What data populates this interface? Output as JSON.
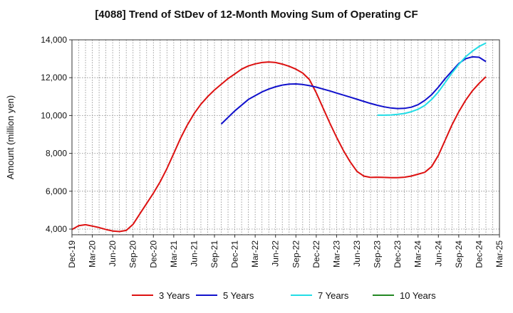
{
  "chart_data": {
    "type": "line",
    "title": "[4088]  Trend of StDev of 12-Month Moving Sum of Operating CF",
    "xlabel": "",
    "ylabel": "Amount (million yen)",
    "ylim": [
      3700,
      14000
    ],
    "yticks": [
      4000,
      6000,
      8000,
      10000,
      12000,
      14000
    ],
    "ytick_labels": [
      "4,000",
      "6,000",
      "8,000",
      "10,000",
      "12,000",
      "14,000"
    ],
    "x_start": "2019-12",
    "x_end": "2025-03",
    "xtick_labels": [
      "Dec-19",
      "Mar-20",
      "Jun-20",
      "Sep-20",
      "Dec-20",
      "Mar-21",
      "Jun-21",
      "Sep-21",
      "Dec-21",
      "Mar-22",
      "Jun-22",
      "Sep-22",
      "Dec-22",
      "Mar-23",
      "Jun-23",
      "Sep-23",
      "Dec-23",
      "Mar-24",
      "Jun-24",
      "Sep-24",
      "Dec-24",
      "Mar-25"
    ],
    "grid": true,
    "legend_position": "bottom",
    "series": [
      {
        "name": "3 Years",
        "color": "#dd1111",
        "points": [
          [
            "2019-12",
            3980
          ],
          [
            "2020-01",
            4180
          ],
          [
            "2020-02",
            4230
          ],
          [
            "2020-03",
            4160
          ],
          [
            "2020-04",
            4080
          ],
          [
            "2020-05",
            3980
          ],
          [
            "2020-06",
            3900
          ],
          [
            "2020-07",
            3870
          ],
          [
            "2020-08",
            3930
          ],
          [
            "2020-09",
            4250
          ],
          [
            "2020-10",
            4800
          ],
          [
            "2020-11",
            5350
          ],
          [
            "2020-12",
            5900
          ],
          [
            "2021-01",
            6500
          ],
          [
            "2021-02",
            7200
          ],
          [
            "2021-03",
            8000
          ],
          [
            "2021-04",
            8800
          ],
          [
            "2021-05",
            9500
          ],
          [
            "2021-06",
            10100
          ],
          [
            "2021-07",
            10600
          ],
          [
            "2021-08",
            11000
          ],
          [
            "2021-09",
            11350
          ],
          [
            "2021-10",
            11650
          ],
          [
            "2021-11",
            11950
          ],
          [
            "2021-12",
            12200
          ],
          [
            "2022-01",
            12450
          ],
          [
            "2022-02",
            12620
          ],
          [
            "2022-03",
            12730
          ],
          [
            "2022-04",
            12800
          ],
          [
            "2022-05",
            12830
          ],
          [
            "2022-06",
            12800
          ],
          [
            "2022-07",
            12720
          ],
          [
            "2022-08",
            12600
          ],
          [
            "2022-09",
            12450
          ],
          [
            "2022-10",
            12250
          ],
          [
            "2022-11",
            11900
          ],
          [
            "2022-12",
            11200
          ],
          [
            "2023-01",
            10400
          ],
          [
            "2023-02",
            9600
          ],
          [
            "2023-03",
            8850
          ],
          [
            "2023-04",
            8150
          ],
          [
            "2023-05",
            7550
          ],
          [
            "2023-06",
            7050
          ],
          [
            "2023-07",
            6800
          ],
          [
            "2023-08",
            6730
          ],
          [
            "2023-09",
            6740
          ],
          [
            "2023-10",
            6730
          ],
          [
            "2023-11",
            6720
          ],
          [
            "2023-12",
            6720
          ],
          [
            "2024-01",
            6740
          ],
          [
            "2024-02",
            6800
          ],
          [
            "2024-03",
            6900
          ],
          [
            "2024-04",
            7000
          ],
          [
            "2024-05",
            7300
          ],
          [
            "2024-06",
            7900
          ],
          [
            "2024-07",
            8700
          ],
          [
            "2024-08",
            9500
          ],
          [
            "2024-09",
            10200
          ],
          [
            "2024-10",
            10800
          ],
          [
            "2024-11",
            11300
          ],
          [
            "2024-12",
            11700
          ],
          [
            "2025-01",
            12050
          ]
        ]
      },
      {
        "name": "5 Years",
        "color": "#1111cc",
        "points": [
          [
            "2021-10",
            9550
          ],
          [
            "2021-11",
            9900
          ],
          [
            "2021-12",
            10250
          ],
          [
            "2022-01",
            10550
          ],
          [
            "2022-02",
            10850
          ],
          [
            "2022-03",
            11050
          ],
          [
            "2022-04",
            11250
          ],
          [
            "2022-05",
            11400
          ],
          [
            "2022-06",
            11520
          ],
          [
            "2022-07",
            11610
          ],
          [
            "2022-08",
            11660
          ],
          [
            "2022-09",
            11670
          ],
          [
            "2022-10",
            11640
          ],
          [
            "2022-11",
            11580
          ],
          [
            "2022-12",
            11500
          ],
          [
            "2023-01",
            11400
          ],
          [
            "2023-02",
            11300
          ],
          [
            "2023-03",
            11190
          ],
          [
            "2023-04",
            11080
          ],
          [
            "2023-05",
            10970
          ],
          [
            "2023-06",
            10860
          ],
          [
            "2023-07",
            10750
          ],
          [
            "2023-08",
            10640
          ],
          [
            "2023-09",
            10540
          ],
          [
            "2023-10",
            10460
          ],
          [
            "2023-11",
            10400
          ],
          [
            "2023-12",
            10370
          ],
          [
            "2024-01",
            10380
          ],
          [
            "2024-02",
            10440
          ],
          [
            "2024-03",
            10570
          ],
          [
            "2024-04",
            10800
          ],
          [
            "2024-05",
            11100
          ],
          [
            "2024-06",
            11500
          ],
          [
            "2024-07",
            11950
          ],
          [
            "2024-08",
            12350
          ],
          [
            "2024-09",
            12750
          ],
          [
            "2024-10",
            13000
          ],
          [
            "2024-11",
            13100
          ],
          [
            "2024-12",
            13080
          ],
          [
            "2025-01",
            12850
          ]
        ]
      },
      {
        "name": "7 Years",
        "color": "#22dde6",
        "points": [
          [
            "2023-09",
            10020
          ],
          [
            "2023-10",
            10020
          ],
          [
            "2023-11",
            10030
          ],
          [
            "2023-12",
            10060
          ],
          [
            "2024-01",
            10110
          ],
          [
            "2024-02",
            10200
          ],
          [
            "2024-03",
            10330
          ],
          [
            "2024-04",
            10530
          ],
          [
            "2024-05",
            10850
          ],
          [
            "2024-06",
            11250
          ],
          [
            "2024-07",
            11750
          ],
          [
            "2024-08",
            12250
          ],
          [
            "2024-09",
            12700
          ],
          [
            "2024-10",
            13100
          ],
          [
            "2024-11",
            13400
          ],
          [
            "2024-12",
            13650
          ],
          [
            "2025-01",
            13830
          ]
        ]
      },
      {
        "name": "10 Years",
        "color": "#228822",
        "points": []
      }
    ]
  }
}
